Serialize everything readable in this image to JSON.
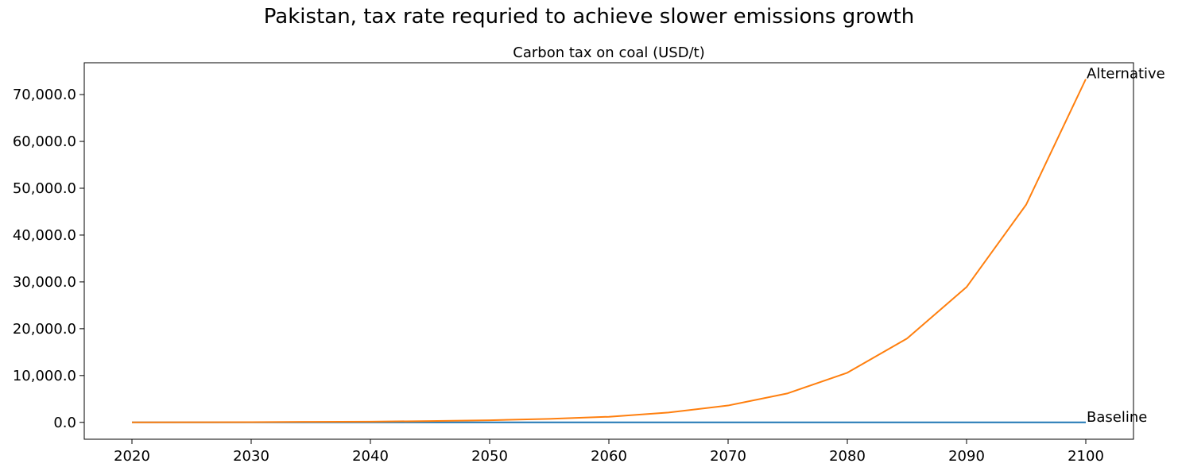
{
  "figure": {
    "suptitle": "Pakistan, tax rate requried to achieve slower emissions growth"
  },
  "chart_data": {
    "type": "line",
    "title": "Carbon tax on coal (USD/t)",
    "xlabel": "",
    "ylabel": "",
    "xlim": [
      2016,
      2104
    ],
    "ylim": [
      -3600,
      76800
    ],
    "xticks": [
      2020,
      2030,
      2040,
      2050,
      2060,
      2070,
      2080,
      2090,
      2100
    ],
    "xtick_labels": [
      "2020",
      "2030",
      "2040",
      "2050",
      "2060",
      "2070",
      "2080",
      "2090",
      "2100"
    ],
    "yticks": [
      0,
      10000,
      20000,
      30000,
      40000,
      50000,
      60000,
      70000
    ],
    "ytick_labels": [
      "0.0",
      "10,000.0",
      "20,000.0",
      "30,000.0",
      "40,000.0",
      "50,000.0",
      "60,000.0",
      "70,000.0"
    ],
    "grid": false,
    "legend": "none",
    "x": [
      2020,
      2025,
      2030,
      2035,
      2040,
      2045,
      2050,
      2055,
      2060,
      2065,
      2070,
      2075,
      2080,
      2085,
      2090,
      2095,
      2100
    ],
    "series": [
      {
        "name": "Baseline",
        "color": "#1f77b4",
        "values": [
          0,
          0,
          0,
          0,
          0,
          0,
          0,
          0,
          0,
          0,
          0,
          0,
          0,
          0,
          0,
          0,
          0
        ]
      },
      {
        "name": "Alternative",
        "color": "#ff7f0e",
        "values": [
          10,
          25,
          55,
          120,
          160,
          280,
          450,
          750,
          1200,
          2100,
          3600,
          6200,
          10600,
          17900,
          28900,
          46500,
          73300
        ]
      }
    ]
  }
}
